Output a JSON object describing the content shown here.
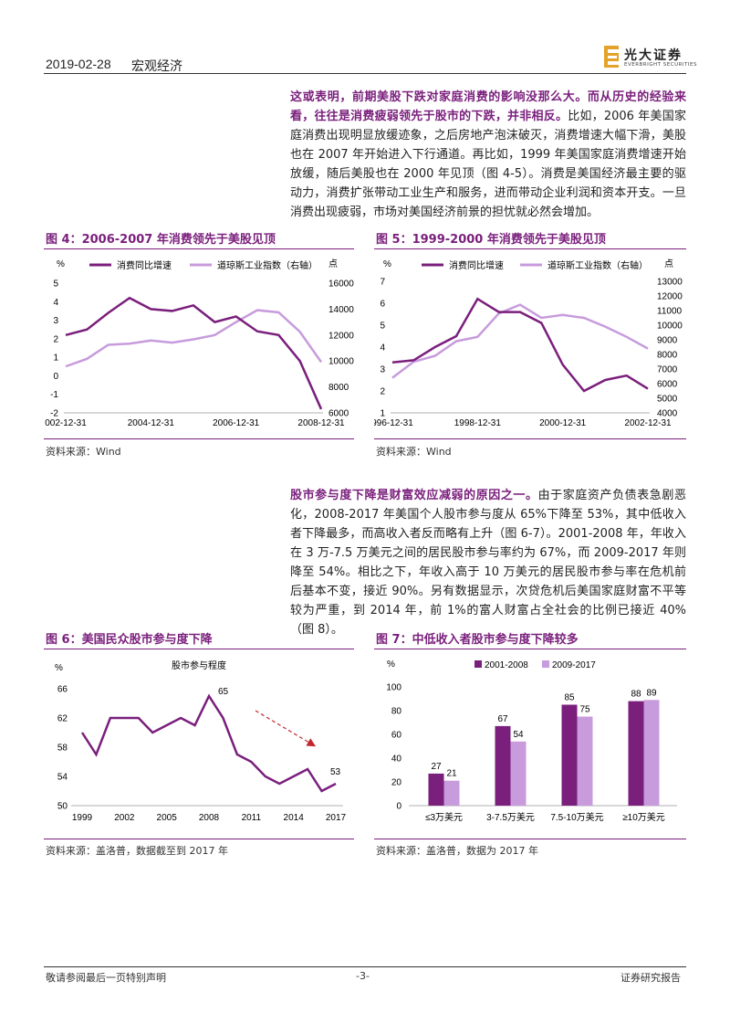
{
  "header": {
    "date": "2019-02-28",
    "section": "宏观经济",
    "logo_name": "光大证券",
    "logo_sub": "EVERBRIGHT SECURITIES"
  },
  "para1": {
    "lead": "这或表明，前期美股下跌对家庭消费的影响没那么大。而从历史的经验来看，往往是消费疲弱领先于股市的下跌，并非相反。",
    "body": "比如，2006 年美国家庭消费出现明显放缓迹象，之后房地产泡沫破灭，消费增速大幅下滑，美股也在 2007 年开始进入下行通道。再比如，1999 年美国家庭消费增速开始放缓，随后美股也在 2000 年见顶（图 4-5）。消费是美国经济最主要的驱动力，消费扩张带动工业生产和服务，进而带动企业利润和资本开支。一旦消费出现疲弱，市场对美国经济前景的担忧就必然会增加。"
  },
  "para2": {
    "lead": "股市参与度下降是财富效应减弱的原因之一。",
    "body": "由于家庭资产负债表急剧恶化，2008-2017 年美国个人股市参与度从 65%下降至 53%，其中低收入者下降最多，而高收入者反而略有上升（图 6-7）。2001-2008 年，年收入在 3 万-7.5 万美元之间的居民股市参与率约为 67%，而 2009-2017 年则降至 54%。相比之下，年收入高于 10 万美元的居民股市参与率在危机前后基本不变，接近 90%。另有数据显示，次贷危机后美国家庭财富不平等较为严重，到 2014 年，前 1%的富人财富占全社会的比例已接近 40%（图 8）。"
  },
  "fig4": {
    "title": "图 4：2006-2007 年消费领先于美股见顶",
    "source": "资料来源：Wind",
    "left_unit": "%",
    "right_unit": "点",
    "legend": [
      "消费同比增速",
      "道琼斯工业指数（右轴）"
    ],
    "yl_ticks": [
      "5",
      "4",
      "3",
      "2",
      "1",
      "0",
      "-1",
      "-2"
    ],
    "yr_ticks": [
      "16000",
      "14000",
      "12000",
      "10000",
      "8000",
      "6000"
    ],
    "x_ticks": [
      "002-12-31",
      "2004-12-31",
      "2006-12-31",
      "2008-12-31"
    ]
  },
  "fig5": {
    "title": "图 5：1999-2000 年消费领先于美股见顶",
    "source": "资料来源：Wind",
    "left_unit": "%",
    "right_unit": "点",
    "legend": [
      "消费同比增速",
      "道琼斯工业指数（右轴）"
    ],
    "yl_ticks": [
      "7",
      "6",
      "5",
      "4",
      "3",
      "2",
      "1"
    ],
    "yr_ticks": [
      "13000",
      "12000",
      "11000",
      "10000",
      "9000",
      "8000",
      "7000",
      "6000",
      "5000",
      "4000"
    ],
    "x_ticks": [
      "996-12-31",
      "1998-12-31",
      "2000-12-31",
      "2002-12-31"
    ]
  },
  "fig6": {
    "title": "图 6：美国民众股市参与度下降",
    "source": "资料来源：盖洛普，数据截至到 2017 年",
    "unit": "%",
    "series_name": "股市参与程度",
    "y_ticks": [
      "66",
      "62",
      "58",
      "54",
      "50"
    ],
    "x_ticks": [
      "1999",
      "2002",
      "2005",
      "2008",
      "2011",
      "2014",
      "2017"
    ],
    "label_peak": "65",
    "label_end": "53"
  },
  "fig7": {
    "title": "图 7：中低收入者股市参与度下降较多",
    "source": "资料来源：盖洛普，数据为 2017 年",
    "unit": "%",
    "y_ticks": [
      "100",
      "80",
      "60",
      "40",
      "20",
      "0"
    ]
  },
  "footer": {
    "left": "敬请参阅最后一页特别声明",
    "center": "-3-",
    "right": "证券研究报告"
  },
  "chart_data": [
    {
      "type": "line",
      "title": "图 4：2006-2007 年消费领先于美股见顶",
      "series": [
        {
          "name": "消费同比增速",
          "axis": "left",
          "x": [
            "2002-12",
            "2003-06",
            "2003-12",
            "2004-06",
            "2004-12",
            "2005-06",
            "2005-12",
            "2006-06",
            "2006-12",
            "2007-06",
            "2007-12",
            "2008-06",
            "2008-12"
          ],
          "values": [
            2.2,
            2.5,
            3.4,
            4.2,
            3.6,
            3.5,
            3.8,
            2.9,
            3.2,
            2.4,
            2.2,
            0.8,
            -1.8
          ]
        },
        {
          "name": "道琼斯工业指数（右轴）",
          "axis": "right",
          "x": [
            "2002-12",
            "2003-06",
            "2003-12",
            "2004-06",
            "2004-12",
            "2005-06",
            "2005-12",
            "2006-06",
            "2006-12",
            "2007-06",
            "2007-12",
            "2008-06",
            "2008-12"
          ],
          "values": [
            8300,
            9000,
            10300,
            10400,
            10700,
            10500,
            10800,
            11200,
            12400,
            13500,
            13300,
            11500,
            8700
          ]
        }
      ],
      "ylim_left": [
        -2,
        5
      ],
      "ylim_right": [
        4000,
        16000
      ]
    },
    {
      "type": "line",
      "title": "图 5：1999-2000 年消费领先于美股见顶",
      "series": [
        {
          "name": "消费同比增速",
          "axis": "left",
          "x": [
            "1996-12",
            "1997-06",
            "1997-12",
            "1998-06",
            "1998-12",
            "1999-06",
            "1999-12",
            "2000-06",
            "2000-12",
            "2001-06",
            "2001-12",
            "2002-06",
            "2002-12"
          ],
          "values": [
            3.3,
            3.4,
            4.0,
            4.5,
            6.2,
            5.6,
            5.6,
            5.1,
            3.2,
            2.0,
            2.5,
            2.7,
            2.1
          ]
        },
        {
          "name": "道琼斯工业指数（右轴）",
          "axis": "right",
          "x": [
            "1996-12",
            "1997-06",
            "1997-12",
            "1998-06",
            "1998-12",
            "1999-06",
            "1999-12",
            "2000-06",
            "2000-12",
            "2001-06",
            "2001-12",
            "2002-06",
            "2002-12"
          ],
          "values": [
            6400,
            7500,
            7900,
            8900,
            9200,
            10800,
            11400,
            10500,
            10700,
            10500,
            9900,
            9200,
            8400
          ]
        }
      ],
      "ylim_left": [
        1,
        7
      ],
      "ylim_right": [
        4000,
        13000
      ]
    },
    {
      "type": "line",
      "title": "图 6：美国民众股市参与度下降",
      "x": [
        1999,
        2000,
        2001,
        2002,
        2003,
        2004,
        2005,
        2006,
        2007,
        2008,
        2009,
        2010,
        2011,
        2012,
        2013,
        2014,
        2015,
        2016,
        2017
      ],
      "series": [
        {
          "name": "股市参与程度",
          "values": [
            60,
            57,
            62,
            62,
            62,
            60,
            61,
            62,
            61,
            65,
            62,
            57,
            56,
            54,
            53,
            54,
            55,
            52,
            53
          ]
        }
      ],
      "ylim": [
        50,
        66
      ]
    },
    {
      "type": "bar",
      "title": "图 7：中低收入者股市参与度下降较多",
      "categories": [
        "≤3万美元",
        "3-7.5万美元",
        "7.5-10万美元",
        "≥10万美元"
      ],
      "series": [
        {
          "name": "2001-2008",
          "color": "#7a1f7c",
          "values": [
            27,
            67,
            85,
            88
          ]
        },
        {
          "name": "2009-2017",
          "color": "#c79bdc",
          "values": [
            21,
            54,
            75,
            89
          ]
        }
      ],
      "ylim": [
        0,
        100
      ]
    }
  ]
}
